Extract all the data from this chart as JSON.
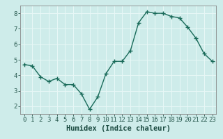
{
  "x": [
    0,
    1,
    2,
    3,
    4,
    5,
    6,
    7,
    8,
    9,
    10,
    11,
    12,
    13,
    14,
    15,
    16,
    17,
    18,
    19,
    20,
    21,
    22,
    23
  ],
  "y": [
    4.7,
    4.6,
    3.9,
    3.6,
    3.8,
    3.4,
    3.4,
    2.8,
    1.8,
    2.6,
    4.1,
    4.9,
    4.9,
    5.6,
    7.4,
    8.1,
    8.0,
    8.0,
    7.8,
    7.7,
    7.1,
    6.4,
    5.4,
    4.9
  ],
  "line_color": "#1a6b5a",
  "marker": "+",
  "markersize": 4,
  "linewidth": 1.0,
  "markeredgewidth": 1.0,
  "xlabel": "Humidex (Indice chaleur)",
  "xlim": [
    -0.5,
    23.5
  ],
  "ylim": [
    1.5,
    8.5
  ],
  "yticks": [
    2,
    3,
    4,
    5,
    6,
    7,
    8
  ],
  "xticks": [
    0,
    1,
    2,
    3,
    4,
    5,
    6,
    7,
    8,
    9,
    10,
    11,
    12,
    13,
    14,
    15,
    16,
    17,
    18,
    19,
    20,
    21,
    22,
    23
  ],
  "bg_color": "#ceecea",
  "grid_color": "#e8f8f7",
  "tick_fontsize": 6.5,
  "xlabel_fontsize": 7.5,
  "grid_linewidth": 0.7,
  "spine_color": "#888888"
}
